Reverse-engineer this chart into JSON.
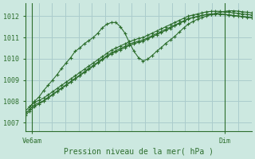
{
  "bg_color": "#cce8e0",
  "grid_color": "#aacccc",
  "line_color": "#2d6e2d",
  "title": "Pression niveau de la mer( hPa )",
  "xlabel_left": "Ve6am",
  "xlabel_right": "Dim",
  "ylim": [
    1006.6,
    1012.6
  ],
  "yticks": [
    1007,
    1008,
    1009,
    1010,
    1011,
    1012
  ],
  "xlim": [
    0,
    100
  ],
  "xtick_left": 3,
  "xtick_right": 88,
  "series1_x": [
    0,
    2,
    4,
    6,
    8,
    10,
    12,
    14,
    16,
    18,
    20,
    22,
    24,
    26,
    28,
    30,
    32,
    34,
    36,
    38,
    40,
    42,
    44,
    46,
    48,
    50,
    52,
    54,
    56,
    58,
    60,
    62,
    64,
    66,
    68,
    70,
    72,
    74,
    76,
    78,
    80,
    82,
    84,
    86,
    88,
    90,
    92,
    94,
    96,
    98,
    100
  ],
  "series1_y": [
    1007.55,
    1007.75,
    1007.95,
    1008.05,
    1008.15,
    1008.3,
    1008.45,
    1008.6,
    1008.75,
    1008.9,
    1009.05,
    1009.2,
    1009.35,
    1009.5,
    1009.65,
    1009.8,
    1009.95,
    1010.1,
    1010.25,
    1010.4,
    1010.5,
    1010.6,
    1010.7,
    1010.8,
    1010.88,
    1010.95,
    1011.0,
    1011.1,
    1011.2,
    1011.3,
    1011.4,
    1011.5,
    1011.6,
    1011.7,
    1011.8,
    1011.9,
    1012.0,
    1012.05,
    1012.1,
    1012.15,
    1012.2,
    1012.22,
    1012.23,
    1012.22,
    1012.2,
    1012.18,
    1012.15,
    1012.13,
    1012.1,
    1012.08,
    1012.05
  ],
  "series2_x": [
    0,
    2,
    4,
    6,
    8,
    10,
    12,
    14,
    16,
    18,
    20,
    22,
    24,
    26,
    28,
    30,
    32,
    34,
    36,
    38,
    40,
    42,
    44,
    46,
    48,
    50,
    52,
    54,
    56,
    58,
    60,
    62,
    64,
    66,
    68,
    70,
    72,
    74,
    76,
    78,
    80,
    82,
    84,
    86,
    88,
    90,
    92,
    94,
    96,
    98,
    100
  ],
  "series2_y": [
    1007.35,
    1007.55,
    1007.75,
    1007.88,
    1008.0,
    1008.15,
    1008.3,
    1008.45,
    1008.6,
    1008.75,
    1008.9,
    1009.05,
    1009.2,
    1009.35,
    1009.5,
    1009.65,
    1009.8,
    1009.95,
    1010.1,
    1010.22,
    1010.32,
    1010.42,
    1010.52,
    1010.62,
    1010.7,
    1010.77,
    1010.82,
    1010.93,
    1011.03,
    1011.13,
    1011.23,
    1011.33,
    1011.43,
    1011.55,
    1011.65,
    1011.76,
    1011.87,
    1011.93,
    1011.98,
    1012.03,
    1012.07,
    1012.09,
    1012.1,
    1012.09,
    1012.07,
    1012.05,
    1012.02,
    1012.0,
    1011.97,
    1011.95,
    1011.92
  ],
  "series3_x": [
    2,
    4,
    6,
    8,
    10,
    12,
    14,
    16,
    18,
    20,
    22,
    24,
    26,
    28,
    30,
    32,
    34,
    36,
    38,
    40,
    42,
    44,
    46,
    48,
    50,
    52,
    54,
    56,
    58,
    60,
    62,
    64,
    66,
    68,
    70,
    72,
    74,
    76,
    78,
    80,
    82,
    84,
    86,
    88,
    90,
    92,
    94,
    96,
    98,
    100
  ],
  "series3_y": [
    1007.75,
    1008.0,
    1008.2,
    1008.5,
    1008.75,
    1009.0,
    1009.25,
    1009.55,
    1009.8,
    1010.05,
    1010.35,
    1010.5,
    1010.7,
    1010.85,
    1011.0,
    1011.2,
    1011.45,
    1011.62,
    1011.7,
    1011.7,
    1011.5,
    1011.2,
    1010.75,
    1010.35,
    1010.05,
    1009.9,
    1009.98,
    1010.15,
    1010.35,
    1010.52,
    1010.72,
    1010.88,
    1011.05,
    1011.25,
    1011.45,
    1011.62,
    1011.75,
    1011.85,
    1011.93,
    1012.0,
    1012.07,
    1012.13,
    1012.18,
    1012.22,
    1012.25,
    1012.25,
    1012.23,
    1012.2,
    1012.18,
    1012.15
  ],
  "num_vgrid": 18,
  "num_hgrid": 6
}
